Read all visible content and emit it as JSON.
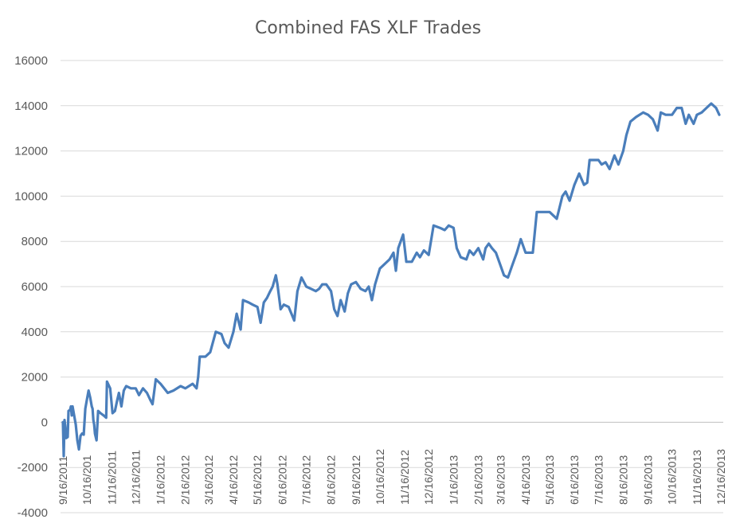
{
  "chart_data": {
    "type": "line",
    "title": "Combined FAS XLF Trades",
    "xlabel": "",
    "ylabel": "",
    "ylim": [
      -4000,
      16000
    ],
    "y_ticks": [
      16000,
      14000,
      12000,
      10000,
      8000,
      6000,
      4000,
      2000,
      0,
      -2000,
      -4000
    ],
    "y_tick_labels": [
      "16000",
      "14000",
      "12000",
      "10000",
      "8000",
      "6000",
      "4000",
      "2000",
      "0",
      "-2000",
      "-4000"
    ],
    "x_tick_labels": [
      "9/16/2011",
      "10/16/2011",
      "11/16/2011",
      "12/16/2011",
      "1/16/2012",
      "2/16/2012",
      "3/16/2012",
      "4/16/2012",
      "5/16/2012",
      "6/16/2012",
      "7/16/2012",
      "8/16/2012",
      "9/16/2012",
      "10/16/2012",
      "11/16/2012",
      "12/16/2012",
      "1/16/2013",
      "2/16/2013",
      "3/16/2013",
      "4/16/2013",
      "5/16/2013",
      "6/16/2013",
      "7/16/2013",
      "8/16/2013",
      "9/16/2013",
      "10/16/2013",
      "11/16/2013",
      "12/16/2013"
    ],
    "x_tick_visible_text": [
      "9/16/2011",
      "10/16/201",
      "11/16/2011",
      "12/16/2011",
      "1/16/2012",
      "2/16/2012",
      "3/16/2012",
      "4/16/2012",
      "5/16/2012",
      "6/16/2012",
      "7/16/2012",
      "8/16/2012",
      "9/16/2012",
      "10/16/2012",
      "11/16/2012",
      "12/16/2012",
      "1/16/2013",
      "2/16/2013",
      "3/16/2013",
      "4/16/2013",
      "5/16/2013",
      "6/16/2013",
      "7/16/2013",
      "8/16/2013",
      "9/16/2013",
      "10/16/2013",
      "11/16/2013",
      "12/16/2013"
    ],
    "grid": true,
    "legend": "none",
    "series": [
      {
        "color": "#4a7ebb",
        "points": [
          [
            "9/16/2011",
            0
          ],
          [
            "9/17/2011",
            -1500
          ],
          [
            "9/18/2011",
            100
          ],
          [
            "9/19/2011",
            -200
          ],
          [
            "9/20/2011",
            -700
          ],
          [
            "9/22/2011",
            -650
          ],
          [
            "9/23/2011",
            500
          ],
          [
            "9/25/2011",
            550
          ],
          [
            "9/26/2011",
            700
          ],
          [
            "9/27/2011",
            300
          ],
          [
            "9/28/2011",
            700
          ],
          [
            "9/30/2011",
            300
          ],
          [
            "10/2/2011",
            -100
          ],
          [
            "10/4/2011",
            -800
          ],
          [
            "10/6/2011",
            -1200
          ],
          [
            "10/8/2011",
            -600
          ],
          [
            "10/10/2011",
            -500
          ],
          [
            "10/12/2011",
            -550
          ],
          [
            "10/14/2011",
            600
          ],
          [
            "10/16/2011",
            1000
          ],
          [
            "10/18/2011",
            1400
          ],
          [
            "10/20/2011",
            1100
          ],
          [
            "10/22/2011",
            700
          ],
          [
            "10/23/2011",
            600
          ],
          [
            "10/24/2011",
            100
          ],
          [
            "10/25/2011",
            -100
          ],
          [
            "10/26/2011",
            -500
          ],
          [
            "10/27/2011",
            -650
          ],
          [
            "10/28/2011",
            -800
          ],
          [
            "10/30/2011",
            500
          ],
          [
            "11/2/2011",
            400
          ],
          [
            "11/6/2011",
            300
          ],
          [
            "11/9/2011",
            200
          ],
          [
            "11/10/2011",
            1800
          ],
          [
            "11/14/2011",
            1500
          ],
          [
            "11/17/2011",
            400
          ],
          [
            "11/20/2011",
            500
          ],
          [
            "11/23/2011",
            1000
          ],
          [
            "11/25/2011",
            1300
          ],
          [
            "11/28/2011",
            700
          ],
          [
            "12/1/2011",
            1400
          ],
          [
            "12/4/2011",
            1600
          ],
          [
            "12/10/2011",
            1500
          ],
          [
            "12/16/2011",
            1500
          ],
          [
            "12/20/2011",
            1200
          ],
          [
            "12/25/2011",
            1500
          ],
          [
            "12/30/2011",
            1300
          ],
          [
            "1/3/2012",
            1000
          ],
          [
            "1/6/2012",
            800
          ],
          [
            "1/10/2012",
            1900
          ],
          [
            "1/16/2012",
            1700
          ],
          [
            "1/25/2012",
            1300
          ],
          [
            "2/1/2012",
            1400
          ],
          [
            "2/10/2012",
            1600
          ],
          [
            "2/16/2012",
            1500
          ],
          [
            "2/25/2012",
            1700
          ],
          [
            "3/1/2012",
            1500
          ],
          [
            "3/3/2012",
            2000
          ],
          [
            "3/5/2012",
            2900
          ],
          [
            "3/12/2012",
            2900
          ],
          [
            "3/18/2012",
            3100
          ],
          [
            "3/25/2012",
            4000
          ],
          [
            "4/1/2012",
            3900
          ],
          [
            "4/5/2012",
            3500
          ],
          [
            "4/10/2012",
            3300
          ],
          [
            "4/16/2012",
            4000
          ],
          [
            "4/20/2012",
            4800
          ],
          [
            "4/25/2012",
            4100
          ],
          [
            "4/28/2012",
            5400
          ],
          [
            "5/5/2012",
            5300
          ],
          [
            "5/10/2012",
            5200
          ],
          [
            "5/16/2012",
            5100
          ],
          [
            "5/20/2012",
            4400
          ],
          [
            "5/24/2012",
            5300
          ],
          [
            "5/28/2012",
            5500
          ],
          [
            "6/1/2012",
            5800
          ],
          [
            "6/4/2012",
            6000
          ],
          [
            "6/8/2012",
            6500
          ],
          [
            "6/10/2012",
            6100
          ],
          [
            "6/14/2012",
            5000
          ],
          [
            "6/18/2012",
            5200
          ],
          [
            "6/24/2012",
            5100
          ],
          [
            "7/1/2012",
            4500
          ],
          [
            "7/5/2012",
            5800
          ],
          [
            "7/10/2012",
            6400
          ],
          [
            "7/16/2012",
            6000
          ],
          [
            "7/22/2012",
            5900
          ],
          [
            "7/28/2012",
            5800
          ],
          [
            "8/1/2012",
            5900
          ],
          [
            "8/5/2012",
            6100
          ],
          [
            "8/10/2012",
            6100
          ],
          [
            "8/16/2012",
            5800
          ],
          [
            "8/20/2012",
            5000
          ],
          [
            "8/24/2012",
            4700
          ],
          [
            "8/28/2012",
            5400
          ],
          [
            "9/2/2012",
            4900
          ],
          [
            "9/6/2012",
            5700
          ],
          [
            "9/10/2012",
            6100
          ],
          [
            "9/16/2012",
            6200
          ],
          [
            "9/22/2012",
            5900
          ],
          [
            "9/28/2012",
            5800
          ],
          [
            "10/2/2012",
            6000
          ],
          [
            "10/6/2012",
            5400
          ],
          [
            "10/10/2012",
            6100
          ],
          [
            "10/16/2012",
            6800
          ],
          [
            "10/22/2012",
            7000
          ],
          [
            "10/28/2012",
            7200
          ],
          [
            "11/2/2012",
            7500
          ],
          [
            "11/5/2012",
            6700
          ],
          [
            "11/8/2012",
            7700
          ],
          [
            "11/14/2012",
            8300
          ],
          [
            "11/18/2012",
            7100
          ],
          [
            "11/25/2012",
            7100
          ],
          [
            "12/1/2012",
            7500
          ],
          [
            "12/5/2012",
            7300
          ],
          [
            "12/10/2012",
            7600
          ],
          [
            "12/16/2012",
            7400
          ],
          [
            "12/22/2012",
            8700
          ],
          [
            "12/30/2012",
            8600
          ],
          [
            "1/5/2013",
            8500
          ],
          [
            "1/10/2013",
            8700
          ],
          [
            "1/16/2013",
            8600
          ],
          [
            "1/20/2013",
            7700
          ],
          [
            "1/25/2013",
            7300
          ],
          [
            "2/1/2013",
            7200
          ],
          [
            "2/5/2013",
            7600
          ],
          [
            "2/10/2013",
            7400
          ],
          [
            "2/16/2013",
            7700
          ],
          [
            "2/22/2013",
            7200
          ],
          [
            "2/25/2013",
            7700
          ],
          [
            "3/1/2013",
            7900
          ],
          [
            "3/5/2013",
            7700
          ],
          [
            "3/10/2013",
            7500
          ],
          [
            "3/16/2013",
            6900
          ],
          [
            "3/20/2013",
            6500
          ],
          [
            "3/25/2013",
            6400
          ],
          [
            "3/30/2013",
            6900
          ],
          [
            "4/5/2013",
            7500
          ],
          [
            "4/10/2013",
            8100
          ],
          [
            "4/16/2013",
            7500
          ],
          [
            "4/25/2013",
            7500
          ],
          [
            "4/30/2013",
            9300
          ],
          [
            "5/10/2013",
            9300
          ],
          [
            "5/16/2013",
            9300
          ],
          [
            "5/25/2013",
            9000
          ],
          [
            "6/1/2013",
            10000
          ],
          [
            "6/5/2013",
            10200
          ],
          [
            "6/10/2013",
            9800
          ],
          [
            "6/16/2013",
            10500
          ],
          [
            "6/22/2013",
            11000
          ],
          [
            "6/28/2013",
            10500
          ],
          [
            "7/2/2013",
            10600
          ],
          [
            "7/5/2013",
            11600
          ],
          [
            "7/16/2013",
            11600
          ],
          [
            "7/20/2013",
            11400
          ],
          [
            "7/25/2013",
            11500
          ],
          [
            "7/30/2013",
            11200
          ],
          [
            "8/5/2013",
            11800
          ],
          [
            "8/10/2013",
            11400
          ],
          [
            "8/16/2013",
            12000
          ],
          [
            "8/20/2013",
            12700
          ],
          [
            "8/25/2013",
            13300
          ],
          [
            "9/1/2013",
            13500
          ],
          [
            "9/10/2013",
            13700
          ],
          [
            "9/16/2013",
            13600
          ],
          [
            "9/22/2013",
            13400
          ],
          [
            "9/28/2013",
            12900
          ],
          [
            "10/2/2013",
            13700
          ],
          [
            "10/8/2013",
            13600
          ],
          [
            "10/16/2013",
            13600
          ],
          [
            "10/22/2013",
            13900
          ],
          [
            "10/28/2013",
            13900
          ],
          [
            "11/2/2013",
            13200
          ],
          [
            "11/6/2013",
            13600
          ],
          [
            "11/12/2013",
            13200
          ],
          [
            "11/16/2013",
            13600
          ],
          [
            "11/22/2013",
            13700
          ],
          [
            "11/28/2013",
            13900
          ],
          [
            "12/4/2013",
            14100
          ],
          [
            "12/10/2013",
            13900
          ],
          [
            "12/14/2013",
            13600
          ]
        ]
      }
    ]
  }
}
